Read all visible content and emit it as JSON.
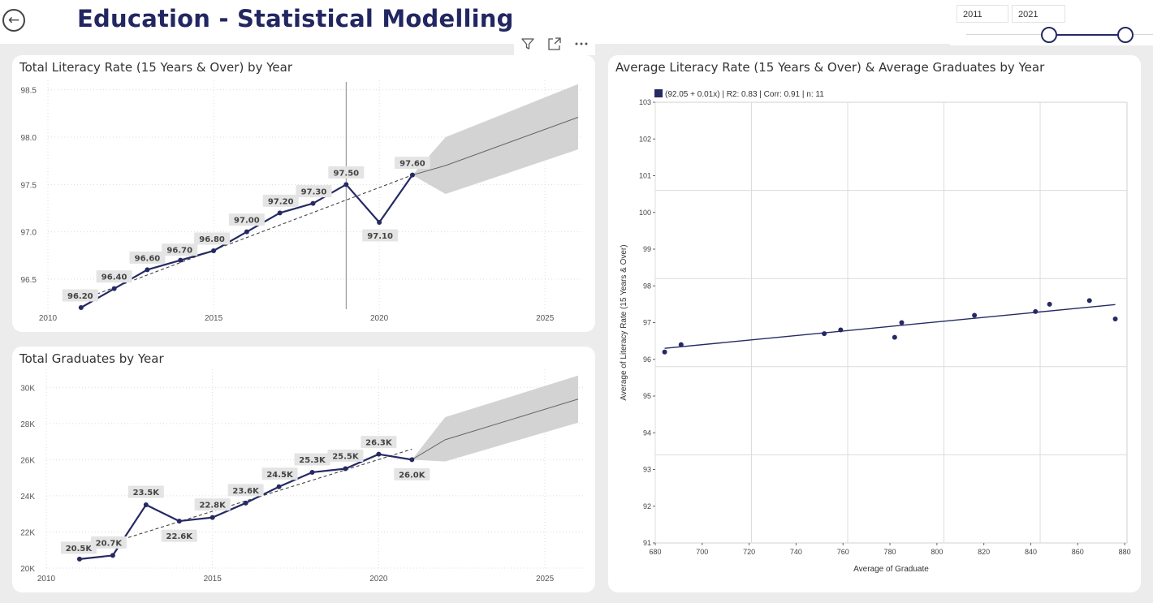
{
  "header": {
    "title": "Education - Statistical Modelling",
    "back_icon": "arrow-left-icon"
  },
  "slicer": {
    "start": "2011",
    "end": "2021"
  },
  "toolbar": {
    "icons": [
      "filter-icon",
      "focus-mode-icon",
      "more-options-icon"
    ]
  },
  "colors": {
    "primary": "#252a64",
    "forecast": "#d3d3d3",
    "label_bg": "#e4e4e4",
    "title": "#222761"
  },
  "chart_data": [
    {
      "type": "line",
      "title": "Total Literacy Rate (15 Years & Over) by Year",
      "x": [
        2011,
        2012,
        2013,
        2014,
        2015,
        2016,
        2017,
        2018,
        2019,
        2020,
        2021
      ],
      "series": [
        {
          "values": [
            96.2,
            96.4,
            96.6,
            96.7,
            96.8,
            97.0,
            97.2,
            97.3,
            97.5,
            97.1,
            97.6
          ]
        }
      ],
      "data_labels": [
        "96.20",
        "96.40",
        "96.60",
        "96.70",
        "96.80",
        "97.00",
        "97.20",
        "97.30",
        "97.50",
        "97.10",
        "97.60"
      ],
      "trend": {
        "from": [
          2011,
          96.28
        ],
        "to": [
          2021,
          97.6
        ]
      },
      "forecast": {
        "x": [
          2021,
          2022,
          2026
        ],
        "mid": [
          97.6,
          97.7,
          98.21
        ],
        "upper": [
          97.6,
          98.0,
          98.56
        ],
        "lower": [
          97.6,
          97.4,
          97.87
        ]
      },
      "reference_x": 2019,
      "xlim": [
        2010,
        2026
      ],
      "ylim": [
        96.08,
        98.6
      ],
      "x_ticks": [
        "2010",
        "2015",
        "2020",
        "2025"
      ],
      "x_tick_values": [
        2010,
        2015,
        2020,
        2025
      ],
      "y_ticks": [
        "96.5",
        "97.0",
        "97.5",
        "98.0",
        "98.5"
      ],
      "y_tick_values": [
        96.5,
        97.0,
        97.5,
        98.0,
        98.5
      ],
      "grid": true
    },
    {
      "type": "line",
      "title": "Total Graduates by Year",
      "x": [
        2011,
        2012,
        2013,
        2014,
        2015,
        2016,
        2017,
        2018,
        2019,
        2020,
        2021
      ],
      "series": [
        {
          "values": [
            20500,
            20700,
            23500,
            22600,
            22800,
            23600,
            24500,
            25300,
            25500,
            26300,
            26000
          ]
        }
      ],
      "data_labels": [
        "20.5K",
        "20.7K",
        "23.5K",
        "22.6K",
        "22.8K",
        "23.6K",
        "24.5K",
        "25.3K",
        "25.5K",
        "26.3K",
        "26.0K"
      ],
      "trend": {
        "from": [
          2011,
          20850
        ],
        "to": [
          2021,
          26580
        ]
      },
      "forecast": {
        "x": [
          2021,
          2022,
          2026
        ],
        "mid": [
          26000,
          27100,
          29350
        ],
        "upper": [
          26000,
          28350,
          30650
        ],
        "lower": [
          26000,
          25900,
          28050
        ]
      },
      "xlim": [
        2010,
        2026
      ],
      "ylim": [
        20000,
        31000
      ],
      "x_ticks": [
        "2010",
        "2015",
        "2020",
        "2025"
      ],
      "x_tick_values": [
        2010,
        2015,
        2020,
        2025
      ],
      "y_ticks": [
        "20K",
        "22K",
        "24K",
        "26K",
        "28K",
        "30K"
      ],
      "y_tick_values": [
        20000,
        22000,
        24000,
        26000,
        28000,
        30000
      ],
      "grid": true
    },
    {
      "type": "scatter",
      "title": "Average Literacy Rate (15 Years & Over) & Average Graduates by Year",
      "legend": "(92.05 + 0.01x) | R2: 0.83 | Corr: 0.91 | n: 11",
      "xlabel": "Average of Graduate",
      "ylabel": "Average of Literacy Rate (15 Years & Over)",
      "points": [
        [
          684,
          96.2
        ],
        [
          691,
          96.4
        ],
        [
          752,
          96.7
        ],
        [
          759,
          96.8
        ],
        [
          782,
          96.6
        ],
        [
          785,
          97.0
        ],
        [
          816,
          97.2
        ],
        [
          842,
          97.3
        ],
        [
          848,
          97.5
        ],
        [
          865,
          97.6
        ],
        [
          876,
          97.1
        ]
      ],
      "regression": {
        "from": [
          684,
          96.3
        ],
        "to": [
          876,
          97.49
        ]
      },
      "xlim": [
        680,
        881
      ],
      "ylim": [
        91,
        103
      ],
      "x_ticks": [
        "680",
        "700",
        "720",
        "740",
        "760",
        "780",
        "800",
        "820",
        "840",
        "860",
        "880"
      ],
      "x_tick_values": [
        680,
        700,
        720,
        740,
        760,
        780,
        800,
        820,
        840,
        860,
        880
      ],
      "y_ticks": [
        "91",
        "92",
        "93",
        "94",
        "95",
        "96",
        "97",
        "98",
        "99",
        "100",
        "101",
        "102",
        "103"
      ],
      "y_tick_values": [
        91,
        92,
        93,
        94,
        95,
        96,
        97,
        98,
        99,
        100,
        101,
        102,
        103
      ],
      "v_grid_values": [
        680,
        721,
        762,
        803,
        844
      ],
      "h_grid_values": [
        93.4,
        95.8,
        98.2,
        100.6
      ],
      "grid": true
    }
  ]
}
